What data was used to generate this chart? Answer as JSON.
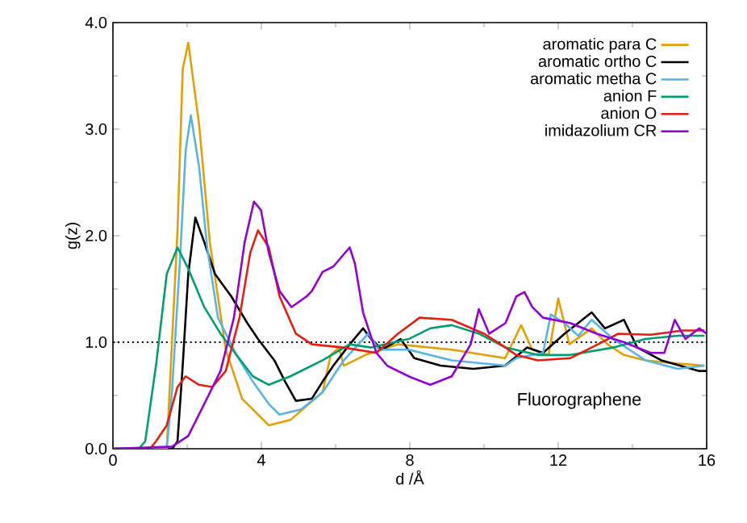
{
  "chart_data": {
    "type": "line",
    "xlabel": "d /Å",
    "ylabel": "g(z)",
    "xlim": [
      0,
      16
    ],
    "ylim": [
      0,
      4
    ],
    "xticks": [
      0,
      4,
      8,
      12,
      16
    ],
    "yticks": [
      {
        "value": 0,
        "label": "0.0"
      },
      {
        "value": 1,
        "label": "1.0"
      },
      {
        "value": 2,
        "label": "2.0"
      },
      {
        "value": 3,
        "label": "3.0"
      },
      {
        "value": 4,
        "label": "4.0"
      }
    ],
    "legend": "top right",
    "grid": false,
    "marker": "none",
    "line_style": "solid",
    "ref_lines": [
      {
        "axis": "y",
        "value": 1,
        "color": "#000000",
        "line_style": "dotted"
      }
    ],
    "annotations": [
      "Fluorographene"
    ],
    "series": [
      {
        "name": "aromatic para C",
        "color": "#e69f00",
        "x": [
          0,
          1.45,
          1.74,
          1.88,
          2.03,
          2.32,
          2.61,
          3.04,
          3.48,
          4.2,
          4.78,
          5.65,
          5.87,
          6.09,
          6.22,
          6.8,
          7.68,
          9.13,
          10.57,
          11.0,
          11.3,
          11.74,
          12.0,
          12.3,
          12.9,
          13.33,
          13.77,
          14.35,
          15.2,
          15.94
        ],
        "values": [
          0,
          0,
          2.05,
          3.56,
          3.81,
          3.05,
          1.94,
          0.93,
          0.47,
          0.22,
          0.27,
          0.53,
          0.88,
          0.95,
          0.78,
          0.88,
          0.98,
          0.93,
          0.85,
          1.16,
          0.93,
          0.88,
          1.41,
          0.98,
          1.13,
          0.98,
          0.88,
          0.83,
          0.8,
          0.78
        ]
      },
      {
        "name": "aromatic ortho C",
        "color": "#000000",
        "x": [
          0,
          1.6,
          1.74,
          1.88,
          2.03,
          2.22,
          2.46,
          2.75,
          3.19,
          3.62,
          3.91,
          4.35,
          4.64,
          4.93,
          5.36,
          5.65,
          5.94,
          6.38,
          6.74,
          6.96,
          7.25,
          7.75,
          8.12,
          8.83,
          9.71,
          10.57,
          11.16,
          11.59,
          12.17,
          12.54,
          12.9,
          13.26,
          13.77,
          14.13,
          14.78,
          15.8,
          16
        ],
        "values": [
          0,
          0,
          0.07,
          0.78,
          1.64,
          2.17,
          1.94,
          1.64,
          1.43,
          1.18,
          1.03,
          0.83,
          0.63,
          0.45,
          0.47,
          0.63,
          0.78,
          0.98,
          1.13,
          1.03,
          0.93,
          1.03,
          0.85,
          0.78,
          0.75,
          0.78,
          0.95,
          0.9,
          1.08,
          1.18,
          1.28,
          1.13,
          1.21,
          0.95,
          0.83,
          0.73,
          0.73
        ]
      },
      {
        "name": "aromatic metha C",
        "color": "#56b4e9",
        "x": [
          0,
          1.45,
          1.59,
          1.81,
          1.96,
          2.1,
          2.32,
          2.54,
          2.83,
          3.33,
          3.77,
          4.2,
          4.49,
          5.07,
          5.65,
          6.22,
          6.88,
          7.17,
          7.97,
          9.13,
          10.58,
          10.87,
          11.59,
          11.8,
          12.17,
          12.54,
          12.9,
          13.48,
          14.35,
          15.22,
          15.94
        ],
        "values": [
          0,
          0,
          0.53,
          1.79,
          2.8,
          3.13,
          2.65,
          1.89,
          1.23,
          0.88,
          0.63,
          0.42,
          0.32,
          0.37,
          0.53,
          0.83,
          1.08,
          0.93,
          0.93,
          0.83,
          0.78,
          0.85,
          0.9,
          1.26,
          1.18,
          1.06,
          1.21,
          1.03,
          0.83,
          0.75,
          0.78
        ]
      },
      {
        "name": "anion F",
        "color": "#009e73",
        "x": [
          0,
          0.7,
          0.87,
          1.16,
          1.45,
          1.74,
          2.03,
          2.46,
          2.9,
          3.33,
          3.77,
          4.2,
          4.78,
          5.65,
          6.38,
          6.96,
          7.97,
          8.55,
          9.13,
          9.86,
          10.58,
          11.45,
          12.32,
          13.48,
          14.35,
          15.22,
          15.94
        ],
        "values": [
          0,
          0,
          0.07,
          0.78,
          1.64,
          1.89,
          1.69,
          1.33,
          1.08,
          0.88,
          0.68,
          0.6,
          0.68,
          0.83,
          0.98,
          0.95,
          1.03,
          1.13,
          1.16,
          1.08,
          0.95,
          0.88,
          0.88,
          0.95,
          1.03,
          1.06,
          1.06
        ]
      },
      {
        "name": "anion O",
        "color": "#e51e10",
        "x": [
          0,
          1.0,
          1.16,
          1.45,
          1.74,
          1.96,
          2.32,
          2.68,
          3.04,
          3.41,
          3.7,
          3.91,
          4.2,
          4.49,
          4.93,
          5.36,
          6.22,
          7.1,
          7.68,
          8.26,
          9.13,
          10.0,
          10.58,
          10.87,
          11.45,
          12.32,
          12.9,
          13.62,
          14.49,
          15.36,
          15.94
        ],
        "values": [
          0,
          0,
          0.07,
          0.22,
          0.58,
          0.68,
          0.6,
          0.58,
          0.73,
          1.23,
          1.84,
          2.05,
          1.89,
          1.43,
          1.08,
          0.98,
          0.95,
          0.9,
          1.08,
          1.23,
          1.21,
          1.08,
          0.95,
          0.88,
          0.83,
          0.85,
          0.95,
          1.08,
          1.07,
          1.11,
          1.11
        ]
      },
      {
        "name": "imidazolium CR",
        "color": "#9400d3",
        "x": [
          0,
          1.59,
          2.03,
          2.46,
          2.9,
          3.26,
          3.55,
          3.8,
          3.99,
          4.2,
          4.49,
          4.81,
          5.22,
          5.36,
          5.65,
          5.94,
          6.38,
          6.52,
          6.74,
          7.1,
          7.39,
          7.97,
          8.55,
          9.13,
          9.64,
          9.86,
          10.14,
          10.58,
          10.87,
          11.09,
          11.3,
          11.59,
          12.32,
          13.04,
          13.77,
          14.49,
          14.86,
          15.14,
          15.43,
          15.8,
          16
        ],
        "values": [
          0,
          0.02,
          0.12,
          0.42,
          0.73,
          1.23,
          1.94,
          2.32,
          2.24,
          1.84,
          1.48,
          1.33,
          1.43,
          1.48,
          1.66,
          1.71,
          1.89,
          1.74,
          1.28,
          0.9,
          0.78,
          0.68,
          0.6,
          0.68,
          0.98,
          1.31,
          1.08,
          1.18,
          1.43,
          1.47,
          1.33,
          1.23,
          1.18,
          1.08,
          1.0,
          0.9,
          0.9,
          1.21,
          1.03,
          1.13,
          1.08
        ]
      }
    ]
  }
}
